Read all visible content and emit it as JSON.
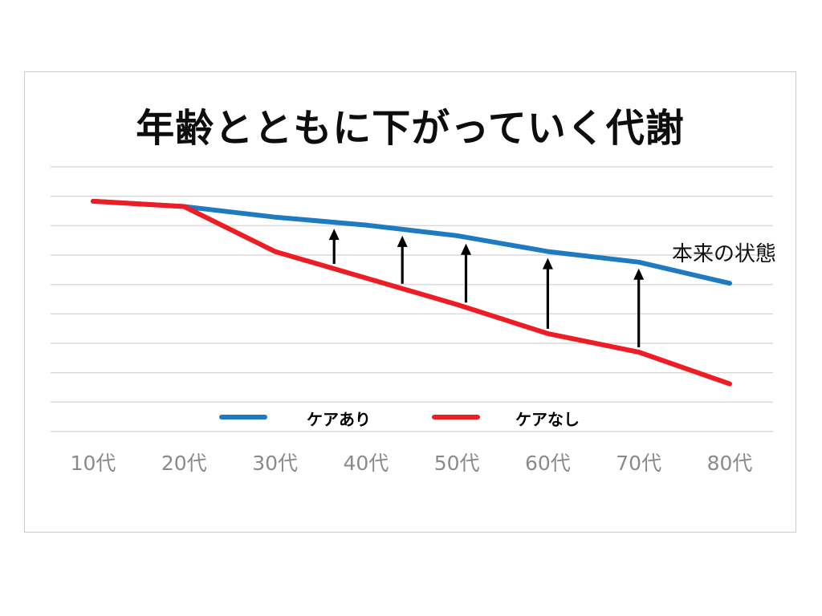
{
  "title": "年齢とともに下がっていく代謝",
  "annotation": "本来の状態",
  "legend": {
    "items": [
      {
        "label": "ケアあり",
        "color": "#1f7bc0"
      },
      {
        "label": "ケアなし",
        "color": "#ee1c23"
      }
    ]
  },
  "chart_data": {
    "type": "line",
    "title": "年齢とともに下がっていく代謝",
    "categories": [
      "10代",
      "20代",
      "30代",
      "40代",
      "50代",
      "60代",
      "70代",
      "80代"
    ],
    "series": [
      {
        "name": "ケアあり",
        "color": "#1f7bc0",
        "values": [
          87,
          85,
          81,
          78,
          74,
          68,
          64,
          56
        ]
      },
      {
        "name": "ケアなし",
        "color": "#ee1c23",
        "values": [
          87,
          85,
          68,
          58,
          48,
          37,
          30,
          18
        ]
      }
    ],
    "xlabel": "",
    "ylabel": "",
    "ylim": [
      0,
      100
    ],
    "gridline_count": 10,
    "grid_color": "#d9d9d9",
    "axis_label_color": "#8a8a8a",
    "legend_position": "bottom-inside",
    "annotation": "本来の状態",
    "gap_arrows_x": [
      2.65,
      3.4,
      4.1,
      5.0,
      6.0
    ],
    "arrow_color": "#000000"
  }
}
